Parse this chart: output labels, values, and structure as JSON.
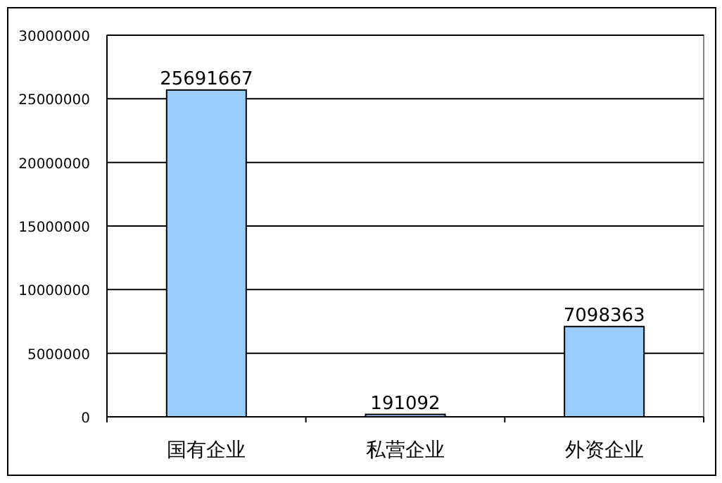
{
  "chart_data": {
    "type": "bar",
    "categories": [
      "国有企业",
      "私营企业",
      "外资企业"
    ],
    "values": [
      25691667,
      191092,
      7098363
    ],
    "color": "#99ccff",
    "ylim": [
      0,
      30000000
    ],
    "yticks": [
      0,
      5000000,
      10000000,
      15000000,
      20000000,
      25000000,
      30000000
    ],
    "grid": "y",
    "data_labels": true
  }
}
